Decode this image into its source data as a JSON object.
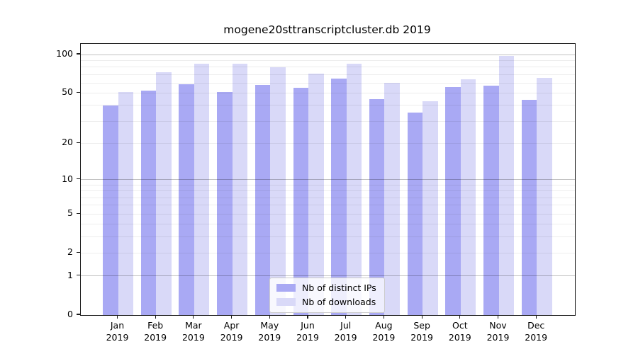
{
  "title": "mogene20sttranscriptcluster.db 2019",
  "chart_data": {
    "type": "bar",
    "scale": "log1p",
    "title": "mogene20sttranscriptcluster.db 2019",
    "categories": [
      "Jan",
      "Feb",
      "Mar",
      "Apr",
      "May",
      "Jun",
      "Jul",
      "Aug",
      "Sep",
      "Oct",
      "Nov",
      "Dec"
    ],
    "x_year_label": "2019",
    "series": [
      {
        "name": "Nb of distinct IPs",
        "color": "#a9a9f4",
        "values": [
          40,
          52,
          59,
          51,
          58,
          55,
          65,
          45,
          35,
          56,
          57,
          44
        ]
      },
      {
        "name": "Nb of downloads",
        "color": "#d9d9f8",
        "values": [
          51,
          73,
          85,
          85,
          80,
          71,
          85,
          60,
          43,
          64,
          98,
          66
        ]
      }
    ],
    "xlabel": "",
    "ylabel": "",
    "ylim": [
      0,
      121
    ],
    "yticks_labeled": [
      0,
      1,
      2,
      5,
      10,
      20,
      50,
      100
    ],
    "yticks_decade": [
      1,
      10,
      100
    ],
    "yticks_minor_grid": [
      2,
      3,
      4,
      5,
      6,
      7,
      8,
      9,
      20,
      30,
      40,
      50,
      60,
      70,
      80,
      90
    ],
    "grid": true,
    "legend_position": "bottom-center"
  }
}
